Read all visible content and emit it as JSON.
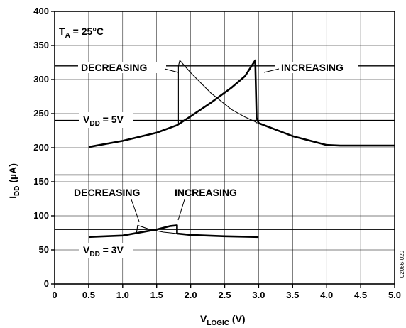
{
  "chart_data": {
    "type": "line",
    "xlabel": {
      "main": "V",
      "sub": "LOGIC",
      "unit": " (V)"
    },
    "ylabel": {
      "main": "I",
      "sub": "DD",
      "unit": " (µA)"
    },
    "xlim": [
      0,
      5.0
    ],
    "ylim": [
      0,
      400
    ],
    "x_ticks": [
      "0",
      "0.5",
      "1.0",
      "1.5",
      "2.0",
      "2.5",
      "3.0",
      "3.5",
      "4.0",
      "4.5",
      "5.0"
    ],
    "y_ticks": [
      "0",
      "50",
      "100",
      "150",
      "200",
      "250",
      "300",
      "350",
      "400"
    ],
    "grid": true,
    "series": [
      {
        "id": "vdd5-increasing",
        "style": "thick",
        "x": [
          0.5,
          1.0,
          1.5,
          1.8,
          2.0,
          2.3,
          2.6,
          2.8,
          2.95,
          2.97,
          3.0,
          3.5,
          4.0,
          4.2,
          5.0
        ],
        "y": [
          201,
          210,
          222,
          233,
          246,
          266,
          288,
          305,
          328,
          244,
          236,
          217,
          204,
          203,
          203
        ]
      },
      {
        "id": "vdd5-decreasing",
        "style": "thin",
        "x": [
          1.82,
          1.82,
          1.84,
          2.0,
          2.3,
          2.6,
          2.8,
          2.95,
          2.98
        ],
        "y": [
          233,
          320,
          328,
          310,
          280,
          256,
          245,
          238,
          236
        ]
      },
      {
        "id": "vdd3-increasing",
        "style": "thick",
        "x": [
          0.5,
          1.0,
          1.5,
          1.7,
          1.8,
          1.8,
          2.0,
          2.5,
          3.0
        ],
        "y": [
          69,
          71,
          80,
          85,
          86,
          74,
          72,
          70,
          69
        ]
      },
      {
        "id": "vdd3-decreasing",
        "style": "thin",
        "x": [
          1.2,
          1.22,
          1.4,
          1.6,
          1.8
        ],
        "y": [
          73,
          86,
          80,
          76,
          74
        ]
      }
    ],
    "reference_lines": [
      320,
      240,
      160,
      80
    ],
    "annotations": {
      "temp": {
        "main": "T",
        "sub": "A",
        "rest": " = 25°C"
      },
      "vdd5": {
        "main": "V",
        "sub": "DD",
        "rest": " = 5V"
      },
      "vdd3": {
        "main": "V",
        "sub": "DD",
        "rest": " = 3V"
      },
      "decreasing_top": "DECREASING",
      "increasing_top": "INCREASING",
      "decreasing_bottom": "DECREASING",
      "increasing_bottom": "INCREASING"
    },
    "figure_id": "02066-020"
  }
}
